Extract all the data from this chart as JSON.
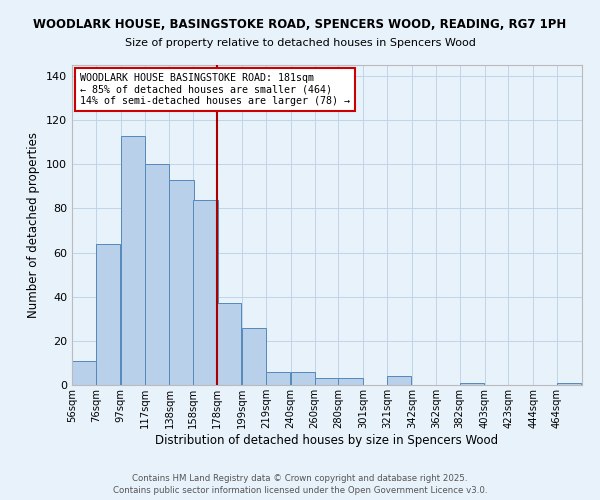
{
  "title1": "WOODLARK HOUSE, BASINGSTOKE ROAD, SPENCERS WOOD, READING, RG7 1PH",
  "title2": "Size of property relative to detached houses in Spencers Wood",
  "xlabel": "Distribution of detached houses by size in Spencers Wood",
  "ylabel": "Number of detached properties",
  "bar_labels": [
    "56sqm",
    "76sqm",
    "97sqm",
    "117sqm",
    "138sqm",
    "158sqm",
    "178sqm",
    "199sqm",
    "219sqm",
    "240sqm",
    "260sqm",
    "280sqm",
    "301sqm",
    "321sqm",
    "342sqm",
    "362sqm",
    "382sqm",
    "403sqm",
    "423sqm",
    "444sqm",
    "464sqm"
  ],
  "bar_values": [
    11,
    64,
    113,
    100,
    93,
    84,
    37,
    26,
    6,
    6,
    3,
    3,
    0,
    4,
    0,
    0,
    1,
    0,
    0,
    0,
    1
  ],
  "bar_color": "#b8d0ea",
  "bar_edge_color": "#5588bb",
  "vline_x": 178,
  "vline_color": "#aa0000",
  "annotation_line1": "WOODLARK HOUSE BASINGSTOKE ROAD: 181sqm",
  "annotation_line2": "← 85% of detached houses are smaller (464)",
  "annotation_line3": "14% of semi-detached houses are larger (78) →",
  "annotation_box_color": "#ffffff",
  "annotation_box_edge": "#cc0000",
  "ylim": [
    0,
    145
  ],
  "yticks": [
    0,
    20,
    40,
    60,
    80,
    100,
    120,
    140
  ],
  "grid_color": "#c0d4e8",
  "bg_color": "#e8f2fa",
  "footer1": "Contains HM Land Registry data © Crown copyright and database right 2025.",
  "footer2": "Contains public sector information licensed under the Open Government Licence v3.0."
}
